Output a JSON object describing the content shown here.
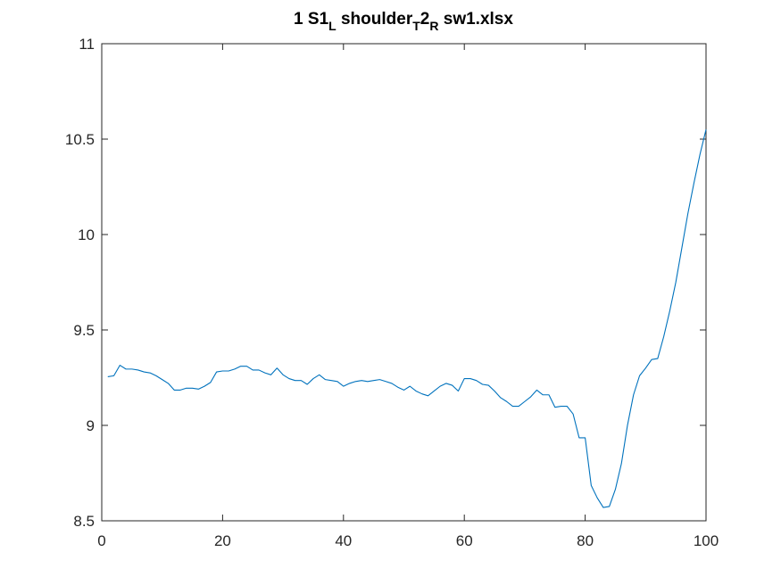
{
  "chart_data": {
    "type": "line",
    "title_parts": {
      "a": "1 S1",
      "b": "L",
      "c": " shoulder",
      "d": "T",
      "e": "2",
      "f": "R",
      "g": " sw1.xlsx"
    },
    "xlabel": "",
    "ylabel": "",
    "xlim": [
      0,
      100
    ],
    "ylim": [
      8.5,
      11
    ],
    "x_ticks": [
      0,
      20,
      40,
      60,
      80,
      100
    ],
    "y_ticks": [
      8.5,
      9,
      9.5,
      10,
      10.5,
      11
    ],
    "x_tick_labels": [
      "0",
      "20",
      "40",
      "60",
      "80",
      "100"
    ],
    "y_tick_labels": [
      "8.5",
      "9",
      "9.5",
      "10",
      "10.5",
      "11"
    ],
    "grid": false,
    "line_color": "#0072BD",
    "series": [
      {
        "x": [
          1,
          2,
          3,
          4,
          5,
          6,
          7,
          8,
          9,
          10,
          11,
          12,
          13,
          14,
          15,
          16,
          17,
          18,
          19,
          20,
          21,
          22,
          23,
          24,
          25,
          26,
          27,
          28,
          29,
          30,
          31,
          32,
          33,
          34,
          35,
          36,
          37,
          38,
          39,
          40,
          41,
          42,
          43,
          44,
          45,
          46,
          47,
          48,
          49,
          50,
          51,
          52,
          53,
          54,
          55,
          56,
          57,
          58,
          59,
          60,
          61,
          62,
          63,
          64,
          65,
          66,
          67,
          68,
          69,
          70,
          71,
          72,
          73,
          74,
          75,
          76,
          77,
          78,
          79,
          80,
          81,
          82,
          83,
          84,
          85,
          86,
          87,
          88,
          89,
          90,
          91,
          92,
          93,
          94,
          95,
          96,
          97,
          98,
          99,
          100
        ],
        "y": [
          9.255,
          9.26,
          9.315,
          9.295,
          9.295,
          9.29,
          9.28,
          9.275,
          9.26,
          9.24,
          9.22,
          9.185,
          9.185,
          9.195,
          9.195,
          9.19,
          9.205,
          9.225,
          9.28,
          9.285,
          9.285,
          9.295,
          9.31,
          9.31,
          9.29,
          9.29,
          9.275,
          9.265,
          9.3,
          9.265,
          9.245,
          9.235,
          9.235,
          9.215,
          9.245,
          9.265,
          9.24,
          9.235,
          9.23,
          9.205,
          9.22,
          9.23,
          9.235,
          9.23,
          9.235,
          9.24,
          9.23,
          9.22,
          9.2,
          9.185,
          9.205,
          9.18,
          9.165,
          9.155,
          9.18,
          9.205,
          9.22,
          9.21,
          9.18,
          9.245,
          9.245,
          9.235,
          9.215,
          9.21,
          9.18,
          9.145,
          9.125,
          9.1,
          9.1,
          9.125,
          9.15,
          9.185,
          9.16,
          9.16,
          9.095,
          9.1,
          9.1,
          9.06,
          8.935,
          8.935,
          8.685,
          8.62,
          8.57,
          8.575,
          8.665,
          8.8,
          9.0,
          9.16,
          9.26,
          9.3,
          9.345,
          9.35,
          9.465,
          9.6,
          9.75,
          9.93,
          10.11,
          10.27,
          10.42,
          10.55
        ]
      }
    ]
  }
}
